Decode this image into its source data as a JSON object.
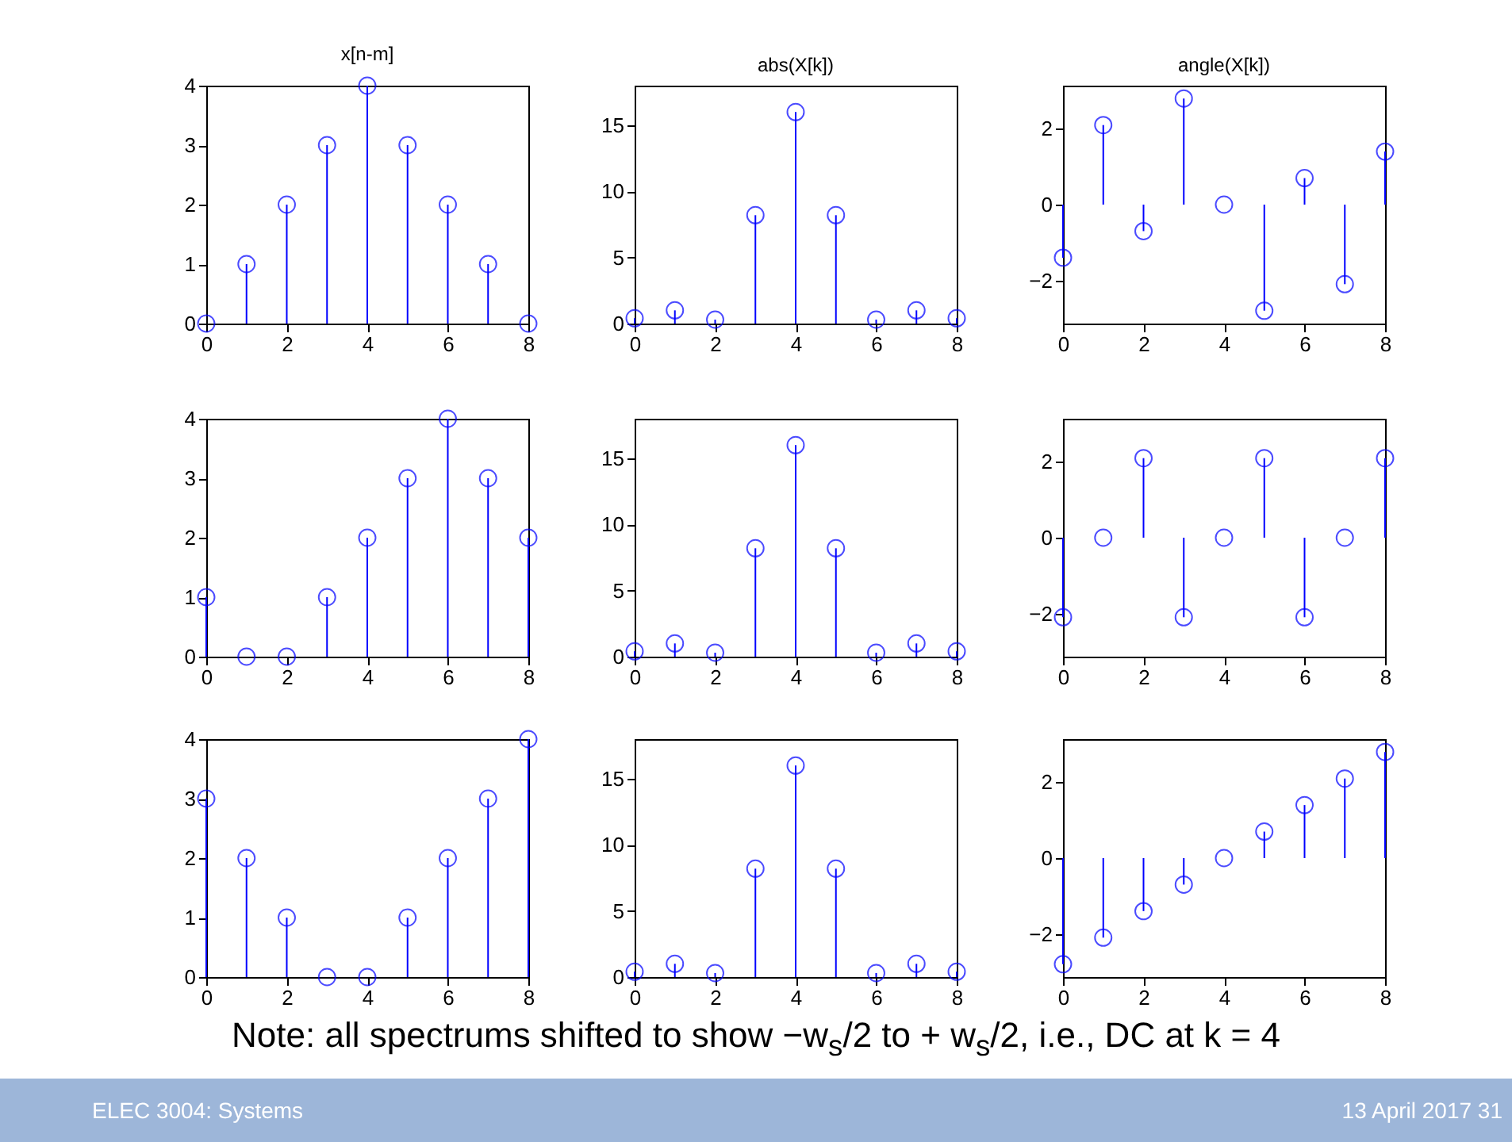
{
  "chart_data": [
    {
      "type": "lollipop",
      "title": "x[n-m]",
      "x": [
        0,
        1,
        2,
        3,
        4,
        5,
        6,
        7,
        8
      ],
      "values": [
        0,
        1,
        2,
        3,
        4,
        3,
        2,
        1,
        0
      ],
      "color": "#0000ff",
      "marker": "circle",
      "xlim": [
        0,
        8
      ],
      "xticks": [
        0,
        2,
        4,
        6,
        8
      ],
      "ylim": [
        0,
        4
      ],
      "yticks": [
        0,
        1,
        2,
        3,
        4
      ]
    },
    {
      "type": "lollipop",
      "title": "abs(X[k])",
      "x": [
        0,
        1,
        2,
        3,
        4,
        5,
        6,
        7,
        8
      ],
      "values": [
        0.4,
        1,
        0.3,
        8.2,
        16,
        8.2,
        0.3,
        1,
        0.4
      ],
      "color": "#0000ff",
      "marker": "circle",
      "xlim": [
        0,
        8
      ],
      "xticks": [
        0,
        2,
        4,
        6,
        8
      ],
      "ylim": [
        0,
        18
      ],
      "yticks": [
        0,
        5,
        10,
        15
      ]
    },
    {
      "type": "lollipop",
      "title": "angle(X[k])",
      "x": [
        0,
        1,
        2,
        3,
        4,
        5,
        6,
        7,
        8
      ],
      "values": [
        -1.4,
        2.1,
        -0.7,
        2.8,
        0,
        -2.8,
        0.7,
        -2.1,
        1.4
      ],
      "color": "#0000ff",
      "marker": "circle",
      "xlim": [
        0,
        8
      ],
      "xticks": [
        0,
        2,
        4,
        6,
        8
      ],
      "ylim": [
        -3.14,
        3.14
      ],
      "yticks": [
        -2,
        0,
        2
      ]
    },
    {
      "type": "lollipop",
      "x": [
        0,
        1,
        2,
        3,
        4,
        5,
        6,
        7,
        8
      ],
      "values": [
        1,
        0,
        0,
        1,
        2,
        3,
        4,
        3,
        2
      ],
      "color": "#0000ff",
      "marker": "circle",
      "xlim": [
        0,
        8
      ],
      "xticks": [
        0,
        2,
        4,
        6,
        8
      ],
      "ylim": [
        0,
        4
      ],
      "yticks": [
        0,
        1,
        2,
        3,
        4
      ]
    },
    {
      "type": "lollipop",
      "x": [
        0,
        1,
        2,
        3,
        4,
        5,
        6,
        7,
        8
      ],
      "values": [
        0.4,
        1,
        0.3,
        8.2,
        16,
        8.2,
        0.3,
        1,
        0.4
      ],
      "color": "#0000ff",
      "marker": "circle",
      "xlim": [
        0,
        8
      ],
      "xticks": [
        0,
        2,
        4,
        6,
        8
      ],
      "ylim": [
        0,
        18
      ],
      "yticks": [
        0,
        5,
        10,
        15
      ]
    },
    {
      "type": "lollipop",
      "x": [
        0,
        1,
        2,
        3,
        4,
        5,
        6,
        7,
        8
      ],
      "values": [
        -2.1,
        0,
        2.1,
        -2.1,
        0,
        2.1,
        -2.1,
        0,
        2.1
      ],
      "color": "#0000ff",
      "marker": "circle",
      "xlim": [
        0,
        8
      ],
      "xticks": [
        0,
        2,
        4,
        6,
        8
      ],
      "ylim": [
        -3.14,
        3.14
      ],
      "yticks": [
        -2,
        0,
        2
      ]
    },
    {
      "type": "lollipop",
      "x": [
        0,
        1,
        2,
        3,
        4,
        5,
        6,
        7,
        8
      ],
      "values": [
        3,
        2,
        1,
        0,
        0,
        1,
        2,
        3,
        4
      ],
      "color": "#0000ff",
      "marker": "circle",
      "xlim": [
        0,
        8
      ],
      "xticks": [
        0,
        2,
        4,
        6,
        8
      ],
      "ylim": [
        0,
        4
      ],
      "yticks": [
        0,
        1,
        2,
        3,
        4
      ]
    },
    {
      "type": "lollipop",
      "x": [
        0,
        1,
        2,
        3,
        4,
        5,
        6,
        7,
        8
      ],
      "values": [
        0.4,
        1,
        0.3,
        8.2,
        16,
        8.2,
        0.3,
        1,
        0.4
      ],
      "color": "#0000ff",
      "marker": "circle",
      "xlim": [
        0,
        8
      ],
      "xticks": [
        0,
        2,
        4,
        6,
        8
      ],
      "ylim": [
        0,
        18
      ],
      "yticks": [
        0,
        5,
        10,
        15
      ]
    },
    {
      "type": "lollipop",
      "x": [
        0,
        1,
        2,
        3,
        4,
        5,
        6,
        7,
        8
      ],
      "values": [
        -2.8,
        -2.1,
        -1.4,
        -0.7,
        0,
        0.7,
        1.4,
        2.1,
        2.8
      ],
      "color": "#0000ff",
      "marker": "circle",
      "xlim": [
        0,
        8
      ],
      "xticks": [
        0,
        2,
        4,
        6,
        8
      ],
      "ylim": [
        -3.14,
        3.14
      ],
      "yticks": [
        -2,
        0,
        2
      ]
    },
    {
      "type": "other",
      "annotations": [
        "Note: all spectrums shifted to show −w$_{s}$/2 to + w$_{s}$/2, i.e., DC at k = 4",
        "ELEC 3004: Systems",
        "13 April 2017 31"
      ]
    }
  ]
}
